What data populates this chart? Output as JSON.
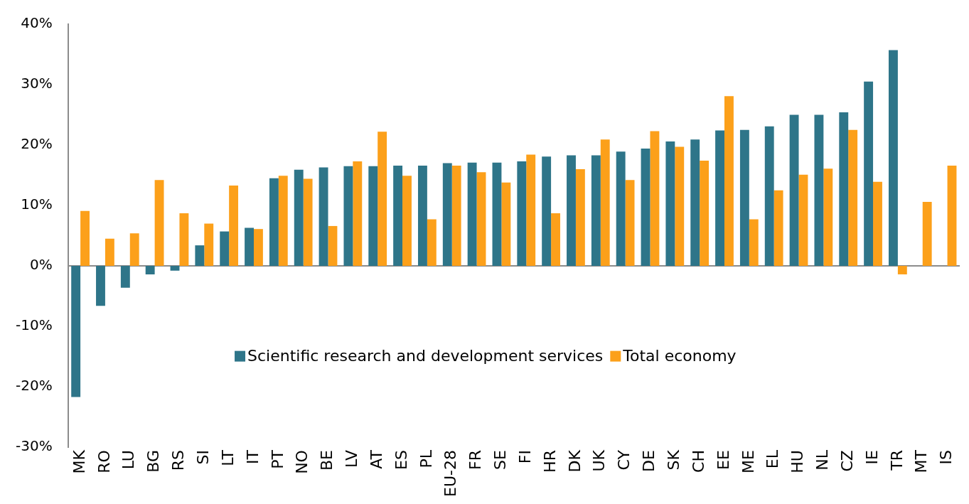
{
  "chart_data": {
    "type": "bar",
    "categories": [
      "MK",
      "RO",
      "LU",
      "BG",
      "RS",
      "SI",
      "LT",
      "IT",
      "PT",
      "NO",
      "BE",
      "LV",
      "AT",
      "ES",
      "PL",
      "EU-28",
      "FR",
      "SE",
      "FI",
      "HR",
      "DK",
      "UK",
      "CY",
      "DE",
      "SK",
      "CH",
      "EE",
      "ME",
      "EL",
      "HU",
      "NL",
      "CZ",
      "IE",
      "TR",
      "MT",
      "IS"
    ],
    "series": [
      {
        "name": "Scientific research and development services",
        "color": "#2e7589",
        "values": [
          -21.7,
          -6.6,
          -3.6,
          -1.4,
          -0.8,
          3.4,
          5.7,
          6.3,
          14.5,
          15.9,
          16.3,
          16.5,
          16.5,
          16.6,
          16.6,
          17.0,
          17.1,
          17.1,
          17.3,
          18.1,
          18.3,
          18.3,
          18.9,
          19.4,
          20.6,
          20.9,
          22.4,
          22.5,
          23.1,
          25.0,
          25.0,
          25.4,
          30.5,
          35.7,
          null,
          null
        ]
      },
      {
        "name": "Total economy",
        "color": "#fca01a",
        "values": [
          9.1,
          4.5,
          5.4,
          14.2,
          8.7,
          7.0,
          13.3,
          6.1,
          14.9,
          14.4,
          6.6,
          17.3,
          22.2,
          14.9,
          7.7,
          16.6,
          15.5,
          13.8,
          18.4,
          8.7,
          16.0,
          20.9,
          14.2,
          22.3,
          19.7,
          17.4,
          28.1,
          7.7,
          12.5,
          15.1,
          16.1,
          22.5,
          13.9,
          -1.4,
          10.6,
          16.6
        ]
      }
    ],
    "ylim": [
      -30,
      40
    ],
    "yticks": [
      {
        "value": -30,
        "label": "-30%"
      },
      {
        "value": -20,
        "label": "-20%"
      },
      {
        "value": -10,
        "label": "-10%"
      },
      {
        "value": 0,
        "label": "0%"
      },
      {
        "value": 10,
        "label": "10%"
      },
      {
        "value": 20,
        "label": "20%"
      },
      {
        "value": 30,
        "label": "30%"
      },
      {
        "value": 40,
        "label": "40%"
      }
    ],
    "legend": "bottom"
  }
}
